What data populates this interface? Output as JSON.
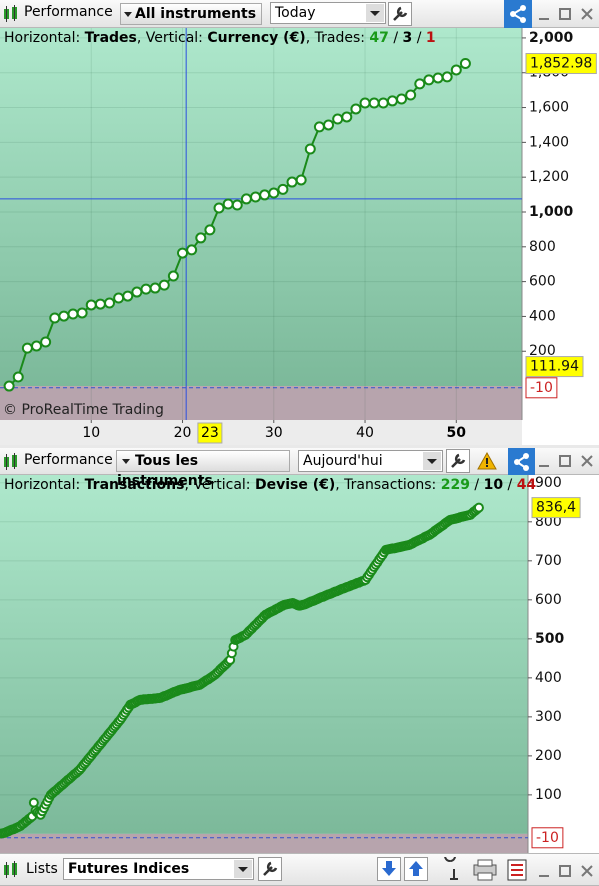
{
  "toolbars": [
    {
      "title": "Performance",
      "instruments": "All instruments",
      "period": "Today"
    },
    {
      "title": "Performance",
      "instruments": "Tous les instruments",
      "period": "Aujourd'hui"
    }
  ],
  "bottom_bar": {
    "title": "Lists",
    "list": "Futures Indices"
  },
  "chart_data": [
    {
      "type": "line",
      "header": {
        "h_label": "Horizontal:",
        "h_value": "Trades",
        "v_label": ", Vertical:",
        "v_value": "Currency (€)",
        "count_label": ", Trades:",
        "won": 47,
        "sep": "/",
        "neutral": 3,
        "lost": 1
      },
      "watermark": "© ProRealTime Trading",
      "x": [
        1,
        2,
        3,
        4,
        5,
        6,
        7,
        8,
        9,
        10,
        11,
        12,
        13,
        14,
        15,
        16,
        17,
        18,
        19,
        20,
        21,
        22,
        23,
        24,
        25,
        26,
        27,
        28,
        29,
        30,
        31,
        32,
        33,
        34,
        35,
        36,
        37,
        38,
        39,
        40,
        41,
        42,
        43,
        44,
        45,
        46,
        47,
        48,
        49,
        50,
        51
      ],
      "values": [
        0,
        52,
        218,
        230,
        253,
        391,
        402,
        414,
        420,
        466,
        471,
        477,
        506,
        517,
        540,
        557,
        563,
        580,
        632,
        764,
        782,
        851,
        897,
        1023,
        1046,
        1040,
        1075,
        1086,
        1098,
        1109,
        1130,
        1172,
        1184,
        1362,
        1489,
        1500,
        1534,
        1546,
        1592,
        1626,
        1626,
        1626,
        1638,
        1649,
        1672,
        1736,
        1759,
        1770,
        1776,
        1816,
        1852.98
      ],
      "color": "#1a8a1a",
      "loss_color": "#cc1100",
      "xlim": [
        0,
        57.2
      ],
      "xticks": [
        10,
        20,
        30,
        40,
        50
      ],
      "x_marker": 23,
      "ylim": [
        -195,
        2057
      ],
      "yticks": [
        {
          "value": 200,
          "label": "200"
        },
        400,
        600,
        800,
        {
          "value": 1000,
          "label": "1,000"
        },
        {
          "value": 1200,
          "label": "1,200"
        },
        {
          "value": 1400,
          "label": "1,400"
        },
        {
          "value": 1600,
          "label": "1,600"
        },
        {
          "value": 1800,
          "label": "1,800"
        },
        {
          "value": 2000,
          "label": "2,000"
        }
      ],
      "major_tick_step": 1000,
      "grid": true,
      "crosshair": {
        "x": 20.4,
        "y": 1075
      },
      "markers": [
        {
          "value": 1852.98,
          "label": "1,852.98",
          "color": "#ffff00"
        },
        {
          "value": 111.94,
          "label": "111.94",
          "color": "#ffff00"
        },
        {
          "value": -10,
          "label": "-10",
          "color": "#ffffff",
          "dashed": true
        }
      ]
    },
    {
      "type": "line",
      "header": {
        "h_label": "Horizontal:",
        "h_value": "Transactions",
        "v_label": ", Vertical:",
        "v_value": "Devise (€)",
        "count_label": ", Transactions:",
        "won": 229,
        "sep": "/",
        "neutral": 10,
        "lost": 44
      },
      "values": [
        1,
        2,
        3,
        5,
        7,
        9,
        11,
        12,
        14,
        16,
        18,
        20,
        24,
        27,
        31,
        34,
        38,
        41,
        45,
        80,
        60,
        55,
        52,
        49,
        58,
        66,
        75,
        83,
        92,
        100,
        104,
        108,
        111,
        115,
        119,
        123,
        126,
        130,
        134,
        138,
        141,
        145,
        149,
        153,
        156,
        160,
        164,
        169,
        175,
        180,
        185,
        191,
        196,
        201,
        207,
        212,
        217,
        223,
        228,
        233,
        239,
        244,
        249,
        255,
        260,
        265,
        271,
        276,
        281,
        287,
        292,
        298,
        305,
        311,
        318,
        324,
        331,
        333,
        335,
        337,
        340,
        342,
        344,
        344,
        345,
        345,
        345,
        346,
        346,
        346,
        347,
        347,
        348,
        348,
        349,
        351,
        353,
        354,
        356,
        358,
        360,
        362,
        364,
        365,
        367,
        369,
        370,
        371,
        372,
        373,
        374,
        375,
        377,
        378,
        379,
        380,
        381,
        382,
        385,
        388,
        391,
        394,
        396,
        399,
        402,
        405,
        408,
        412,
        416,
        421,
        425,
        429,
        433,
        437,
        442,
        446,
        463,
        480,
        497,
        499,
        501,
        503,
        506,
        508,
        510,
        514,
        519,
        523,
        527,
        532,
        536,
        540,
        545,
        549,
        553,
        558,
        562,
        564,
        567,
        569,
        571,
        573,
        576,
        578,
        580,
        583,
        585,
        587,
        588,
        589,
        590,
        591,
        592,
        590,
        588,
        586,
        585,
        586,
        587,
        588,
        590,
        592,
        594,
        596,
        597,
        599,
        601,
        603,
        605,
        607,
        608,
        610,
        612,
        614,
        615,
        617,
        619,
        621,
        622,
        624,
        626,
        628,
        629,
        631,
        633,
        634,
        636,
        638,
        639,
        641,
        643,
        644,
        646,
        648,
        649,
        651,
        658,
        664,
        671,
        677,
        684,
        690,
        696,
        703,
        709,
        715,
        722,
        728,
        729,
        730,
        731,
        732,
        732,
        733,
        734,
        735,
        736,
        737,
        738,
        739,
        740,
        741,
        743,
        745,
        748,
        750,
        752,
        754,
        756,
        758,
        761,
        763,
        765,
        767,
        770,
        773,
        777,
        780,
        783,
        786,
        789,
        792,
        796,
        799,
        802,
        805,
        806,
        807,
        808,
        809,
        810,
        812,
        813,
        814,
        815,
        816,
        817,
        818,
        822,
        826,
        829,
        833,
        836.4
      ],
      "color": "#1a8a1a",
      "loss_color": "#cc1100",
      "xlim": [
        0,
        312
      ],
      "ylim": [
        -49,
        920
      ],
      "yticks": [
        100,
        200,
        300,
        400,
        500,
        600,
        700,
        800,
        900
      ],
      "major_tick_step": 500,
      "grid": true,
      "markers": [
        {
          "value": 836.4,
          "label": "836,4",
          "color": "#ffff00"
        },
        {
          "value": -10,
          "label": "-10",
          "color": "#ffffff",
          "dashed": true
        }
      ]
    }
  ]
}
